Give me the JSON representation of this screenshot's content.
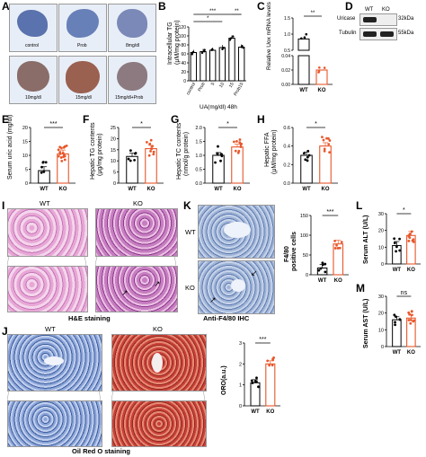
{
  "panels": {
    "A": {
      "label": "A",
      "images": [
        "control",
        "Prob",
        "8mg/dl",
        "10mg/dl",
        "15mg/dl",
        "15mg/dl+Prob"
      ]
    },
    "B": {
      "label": "B",
      "ylabel": "Intracellular TG",
      "ylabel2": "(μM/mg protein)",
      "xlabel": "UA(mg/dl) 48h",
      "sig": [
        "***",
        "*",
        "**"
      ],
      "chart_data": {
        "type": "bar",
        "categories": [
          "control",
          "Prob",
          "5",
          "10",
          "15",
          "Prob15"
        ],
        "values": [
          63,
          65,
          68,
          74,
          95,
          75
        ],
        "ylim": [
          0,
          120
        ],
        "yticks": [
          "0",
          "20",
          "40",
          "60",
          "80",
          "100",
          "120"
        ]
      }
    },
    "C": {
      "label": "C",
      "ylabel": "Relative Uox mRNA levels",
      "sig": "**",
      "chart_data": {
        "type": "bar",
        "categories": [
          "WT",
          "KO"
        ],
        "values": [
          0.85,
          0.02
        ],
        "yticks": [
          "0.00",
          "0.02",
          "0.04",
          "0.5",
          "1.0",
          "1.5"
        ]
      }
    },
    "D": {
      "label": "D",
      "lanes": [
        "WT",
        "KO"
      ],
      "rows": [
        {
          "name": "Uricase",
          "size": "32kDa"
        },
        {
          "name": "Tubulin",
          "size": "55kDa"
        }
      ]
    },
    "E": {
      "label": "E",
      "ylabel": "Serum uric acid (mg/dl)",
      "sig": "***",
      "chart_data": {
        "type": "bar",
        "categories": [
          "WT",
          "KO"
        ],
        "values": [
          4.5,
          10.5
        ],
        "ylim": [
          0,
          20
        ],
        "yticks": [
          "0",
          "5",
          "10",
          "15",
          "20"
        ]
      }
    },
    "F": {
      "label": "F",
      "ylabel": "Hepatic TG contents",
      "ylabel2": "(μg/mg protein)",
      "sig": "*",
      "chart_data": {
        "type": "bar",
        "categories": [
          "WT",
          "KO"
        ],
        "values": [
          12,
          15.5
        ],
        "ylim": [
          0,
          25
        ],
        "yticks": [
          "0",
          "5",
          "10",
          "15",
          "20",
          "25"
        ]
      }
    },
    "G": {
      "label": "G",
      "ylabel": "Hepatic TC contents",
      "ylabel2": "(nmol/g protein)",
      "sig": "*",
      "chart_data": {
        "type": "bar",
        "categories": [
          "WT",
          "KO"
        ],
        "values": [
          1.0,
          1.3
        ],
        "ylim": [
          0,
          2.0
        ],
        "yticks": [
          "0.0",
          "0.5",
          "1.0",
          "1.5",
          "2.0"
        ]
      }
    },
    "H": {
      "label": "H",
      "ylabel": "Hepatic FFA",
      "ylabel2": "(μM/mg protein)",
      "sig": "*",
      "chart_data": {
        "type": "bar",
        "categories": [
          "WT",
          "KO"
        ],
        "values": [
          0.3,
          0.4
        ],
        "ylim": [
          0,
          0.6
        ],
        "yticks": [
          "0.0",
          "0.2",
          "0.4",
          "0.6"
        ]
      }
    },
    "I": {
      "label": "I",
      "groups": [
        "WT",
        "KO"
      ],
      "caption": "H&E staining"
    },
    "K": {
      "label": "K",
      "rows": [
        "WT",
        "KO"
      ],
      "caption": "Anti-F4/80 IHC",
      "ylabel": "F4/80",
      "ylabel2": "positive cells",
      "sig": "***",
      "chart_data": {
        "type": "bar",
        "categories": [
          "WT",
          "KO"
        ],
        "values": [
          17,
          78
        ],
        "ylim": [
          0,
          150
        ],
        "yticks": [
          "0",
          "50",
          "100",
          "150"
        ]
      }
    },
    "L": {
      "label": "L",
      "ylabel": "Serum ALT (U/L)",
      "sig": "*",
      "chart_data": {
        "type": "bar",
        "categories": [
          "WT",
          "KO"
        ],
        "values": [
          11,
          17
        ],
        "ylim": [
          0,
          30
        ],
        "yticks": [
          "0",
          "10",
          "20",
          "30"
        ]
      }
    },
    "M": {
      "label": "M",
      "ylabel": "Serum AST (U/L)",
      "sig": "ns",
      "chart_data": {
        "type": "bar",
        "categories": [
          "WT",
          "KO"
        ],
        "values": [
          16,
          17
        ],
        "ylim": [
          0,
          30
        ],
        "yticks": [
          "0",
          "10",
          "20",
          "30"
        ]
      }
    },
    "J": {
      "label": "J",
      "groups": [
        "WT",
        "KO"
      ],
      "caption": "Oil Red O staining",
      "ylabel": "ORO(a.u.)",
      "sig": "***",
      "chart_data": {
        "type": "bar",
        "categories": [
          "WT",
          "KO"
        ],
        "values": [
          1.1,
          2.0
        ],
        "ylim": [
          0,
          3
        ],
        "yticks": [
          "0",
          "1",
          "2",
          "3"
        ]
      }
    }
  }
}
